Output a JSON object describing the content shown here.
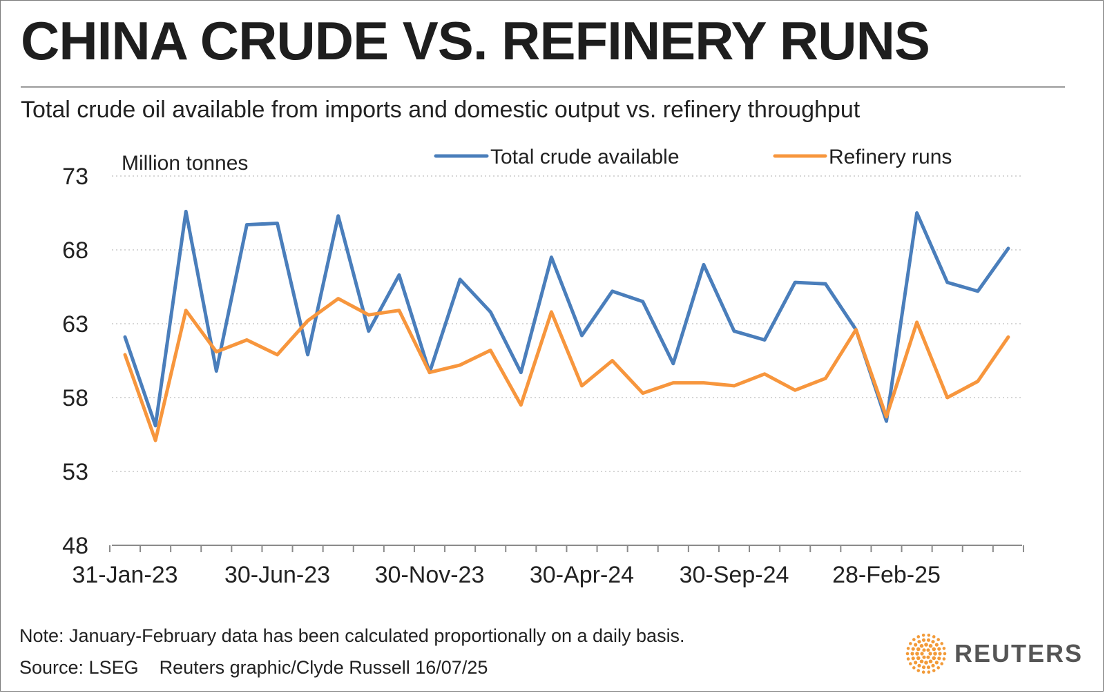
{
  "header": {
    "title": "CHINA CRUDE VS. REFINERY RUNS",
    "subtitle": "Total crude oil available from imports and domestic output vs. refinery throughput"
  },
  "footer": {
    "note": "Note: January-February data has been calculated proportionally on a daily basis.",
    "source": "Source: LSEG",
    "credit": "Reuters graphic/Clyde Russell 16/07/25"
  },
  "logo": {
    "text": "REUTERS",
    "icon": "reuters-dot-logo-icon",
    "color": "#f29a38"
  },
  "chart_data": {
    "type": "line",
    "ylabel": "Million tonnes",
    "ylim": [
      48,
      73
    ],
    "yticks": [
      48,
      53,
      58,
      63,
      68,
      73
    ],
    "grid": "horizontal-dotted",
    "legend_position": "top",
    "x": [
      "31-Jan-23",
      "28-Feb-23",
      "31-Mar-23",
      "30-Apr-23",
      "31-May-23",
      "30-Jun-23",
      "31-Jul-23",
      "31-Aug-23",
      "30-Sep-23",
      "31-Oct-23",
      "30-Nov-23",
      "31-Dec-23",
      "31-Jan-24",
      "29-Feb-24",
      "31-Mar-24",
      "30-Apr-24",
      "31-May-24",
      "30-Jun-24",
      "31-Jul-24",
      "31-Aug-24",
      "30-Sep-24",
      "31-Oct-24",
      "30-Nov-24",
      "31-Dec-24",
      "31-Jan-25",
      "28-Feb-25",
      "31-Mar-25",
      "30-Apr-25",
      "31-May-25",
      "30-Jun-25"
    ],
    "xtick_labels": [
      "31-Jan-23",
      "30-Jun-23",
      "30-Nov-23",
      "30-Apr-24",
      "30-Sep-24",
      "28-Feb-25"
    ],
    "series": [
      {
        "name": "Total crude available",
        "color": "#4a7ebb",
        "values": [
          62.1,
          56.1,
          70.6,
          59.8,
          69.7,
          69.8,
          60.9,
          70.3,
          62.5,
          66.3,
          59.7,
          66.0,
          63.8,
          59.7,
          67.5,
          62.2,
          65.2,
          64.5,
          60.3,
          67.0,
          62.5,
          61.9,
          65.8,
          65.7,
          62.6,
          56.4,
          70.5,
          65.8,
          65.2,
          68.1
        ]
      },
      {
        "name": "Refinery runs",
        "color": "#f7963d",
        "values": [
          60.9,
          55.1,
          63.9,
          61.1,
          61.9,
          60.9,
          63.2,
          64.7,
          63.6,
          63.9,
          59.7,
          60.2,
          61.2,
          57.5,
          63.8,
          58.8,
          60.5,
          58.3,
          59.0,
          59.0,
          58.8,
          59.6,
          58.5,
          59.3,
          62.6,
          56.7,
          63.1,
          58.0,
          59.1,
          62.1
        ]
      }
    ]
  }
}
